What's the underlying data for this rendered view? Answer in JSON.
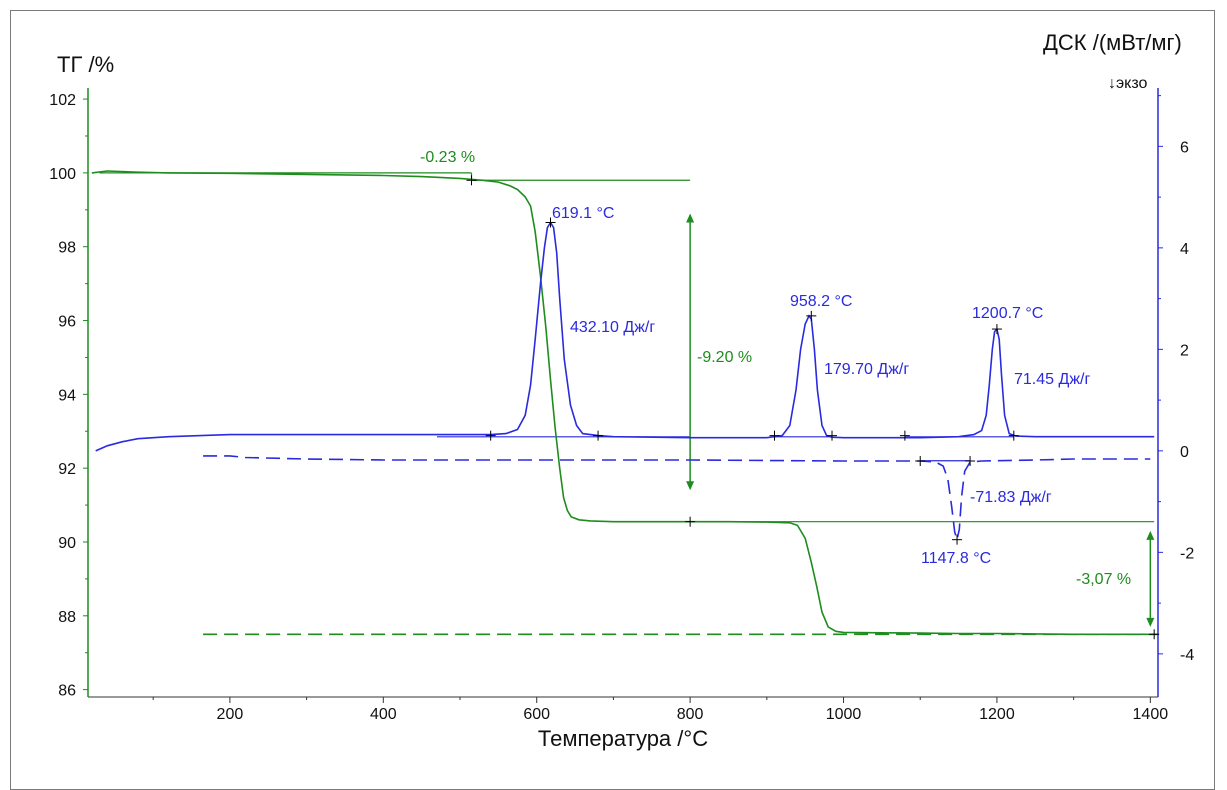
{
  "chart_data": {
    "type": "line",
    "title": "",
    "xlabel": "Температура /°C",
    "ylabel_left": "ТГ /%",
    "ylabel_right": "ДСК /(мВт/мг)",
    "ylabel_right_note": "↓экзо",
    "xlim": [
      15,
      1410
    ],
    "ylim_left": [
      85.8,
      102.3
    ],
    "ylim_right": [
      -4.85,
      7.15
    ],
    "x_ticks": [
      200,
      400,
      600,
      800,
      1000,
      1200,
      1400
    ],
    "y_left_ticks": [
      86,
      88,
      90,
      92,
      94,
      96,
      98,
      100,
      102
    ],
    "y_right_ticks": [
      -4,
      -2,
      0,
      2,
      4,
      6
    ],
    "grid": false,
    "colors": {
      "tg": "#1e8c1e",
      "dsc": "#2a2ae0",
      "axis_left": "#1e8c1e",
      "axis_right": "#2a2ae0",
      "frame": "#7a7a7a"
    },
    "series": [
      {
        "axis": "left",
        "line_style": "solid",
        "x": [
          20,
          40,
          80,
          120,
          200,
          300,
          400,
          450,
          500,
          530,
          550,
          565,
          575,
          585,
          592,
          598,
          605,
          612,
          618,
          624,
          630,
          635,
          640,
          645,
          655,
          670,
          700,
          750,
          800,
          850,
          900,
          930,
          940,
          950,
          958,
          965,
          972,
          980,
          990,
          1000,
          1050,
          1100,
          1150,
          1200,
          1250,
          1300,
          1350,
          1400,
          1410
        ],
        "y": [
          100.0,
          100.05,
          100.02,
          100.0,
          99.99,
          99.96,
          99.93,
          99.9,
          99.85,
          99.8,
          99.75,
          99.65,
          99.55,
          99.35,
          99.1,
          98.4,
          97.2,
          95.8,
          94.4,
          93.1,
          92.0,
          91.2,
          90.85,
          90.68,
          90.6,
          90.57,
          90.55,
          90.55,
          90.55,
          90.55,
          90.54,
          90.52,
          90.45,
          90.1,
          89.45,
          88.8,
          88.1,
          87.7,
          87.58,
          87.55,
          87.54,
          87.53,
          87.52,
          87.52,
          87.51,
          87.5,
          87.5,
          87.5,
          87.5
        ]
      },
      {
        "axis": "right",
        "line_style": "solid",
        "x": [
          25,
          40,
          60,
          80,
          120,
          200,
          300,
          400,
          500,
          540,
          560,
          575,
          585,
          592,
          598,
          605,
          610,
          614,
          618,
          622,
          626,
          630,
          636,
          644,
          652,
          660,
          680,
          700,
          800,
          900,
          920,
          930,
          938,
          944,
          950,
          955,
          958,
          962,
          966,
          972,
          978,
          985,
          1000,
          1050,
          1100,
          1150,
          1170,
          1180,
          1186,
          1190,
          1194,
          1197,
          1200,
          1203,
          1206,
          1210,
          1216,
          1225,
          1250,
          1300,
          1350,
          1405
        ],
        "y": [
          0.0,
          0.1,
          0.18,
          0.24,
          0.28,
          0.32,
          0.32,
          0.32,
          0.32,
          0.32,
          0.34,
          0.42,
          0.7,
          1.3,
          2.2,
          3.3,
          4.0,
          4.4,
          4.5,
          4.4,
          3.9,
          3.0,
          1.8,
          0.9,
          0.5,
          0.34,
          0.3,
          0.28,
          0.26,
          0.26,
          0.3,
          0.5,
          1.2,
          2.0,
          2.5,
          2.66,
          2.6,
          2.0,
          1.2,
          0.5,
          0.3,
          0.27,
          0.26,
          0.26,
          0.26,
          0.28,
          0.32,
          0.4,
          0.7,
          1.3,
          2.0,
          2.35,
          2.4,
          2.2,
          1.5,
          0.7,
          0.34,
          0.29,
          0.28,
          0.28,
          0.28,
          0.28
        ]
      },
      {
        "axis": "right",
        "line_style": "dashed",
        "x": [
          165,
          200,
          220,
          300,
          400,
          500,
          600,
          700,
          800,
          900,
          1000,
          1080,
          1100,
          1120,
          1130,
          1136,
          1141,
          1145,
          1148,
          1151,
          1154,
          1158,
          1165,
          1180,
          1250,
          1300,
          1400
        ],
        "y": [
          -0.1,
          -0.1,
          -0.13,
          -0.16,
          -0.18,
          -0.18,
          -0.18,
          -0.18,
          -0.18,
          -0.19,
          -0.2,
          -0.2,
          -0.2,
          -0.22,
          -0.3,
          -0.55,
          -1.1,
          -1.6,
          -1.75,
          -1.55,
          -0.9,
          -0.4,
          -0.22,
          -0.2,
          -0.18,
          -0.16,
          -0.16
        ]
      },
      {
        "axis": "left",
        "line_style": "dashed",
        "x": [
          165,
          1410
        ],
        "y": [
          87.5,
          87.5
        ]
      }
    ],
    "annotations": [
      {
        "text": "-0.23 %",
        "color": "#1e8c1e"
      },
      {
        "text": "619.1 °C",
        "color": "#2a2ae0"
      },
      {
        "text": "432.10 Дж/г",
        "color": "#2a2ae0"
      },
      {
        "text": "-9.20 %",
        "color": "#1e8c1e"
      },
      {
        "text": "958.2 °C",
        "color": "#2a2ae0"
      },
      {
        "text": "179.70 Дж/г",
        "color": "#2a2ae0"
      },
      {
        "text": "1200.7 °C",
        "color": "#2a2ae0"
      },
      {
        "text": "71.45 Дж/г",
        "color": "#2a2ae0"
      },
      {
        "text": "-71.83 Дж/г",
        "color": "#2a2ae0"
      },
      {
        "text": "1147.8 °C",
        "color": "#2a2ae0"
      },
      {
        "text": "-3,07 %",
        "color": "#1e8c1e"
      }
    ]
  }
}
